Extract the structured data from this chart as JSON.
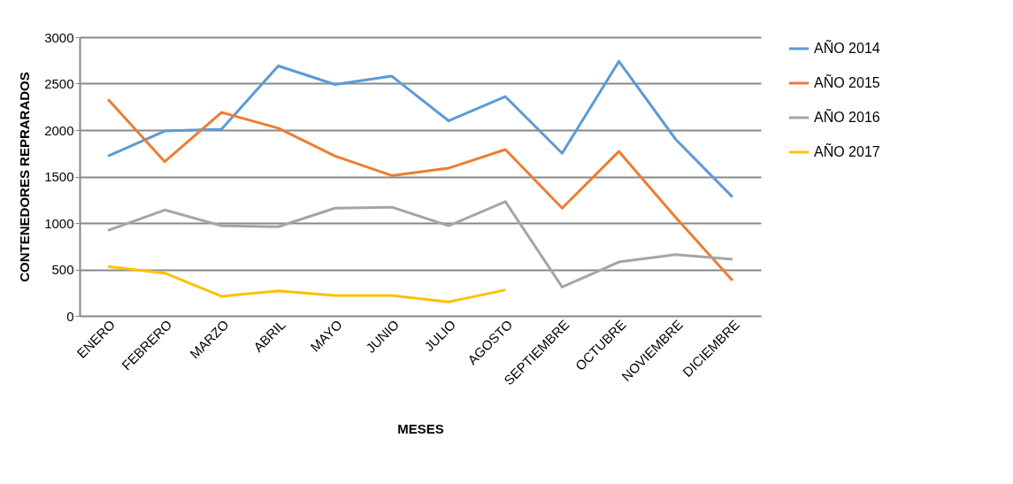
{
  "chart_data": {
    "type": "line",
    "xlabel": "MESES",
    "ylabel": "CONTENEDORES   REPRARADOS",
    "categories": [
      "ENERO",
      "FEBRERO",
      "MARZO",
      "ABRIL",
      "MAYO",
      "JUNIO",
      "JULIO",
      "AGOSTO",
      "SEPTIEMBRE",
      "OCTUBRE",
      "NOVIEMBRE",
      "DICIEMBRE"
    ],
    "series": [
      {
        "name": "AÑO  2014",
        "color": "#5b9bd5",
        "values": [
          1720,
          1990,
          2010,
          2690,
          2490,
          2580,
          2100,
          2360,
          1750,
          2740,
          1900,
          1280
        ]
      },
      {
        "name": "AÑO  2015",
        "color": "#ed7d31",
        "values": [
          2330,
          1660,
          2190,
          2020,
          1720,
          1510,
          1590,
          1790,
          1160,
          1770,
          1060,
          380
        ]
      },
      {
        "name": "AÑO  2016",
        "color": "#a5a5a5",
        "values": [
          920,
          1140,
          970,
          960,
          1160,
          1170,
          970,
          1230,
          310,
          580,
          660,
          610
        ]
      },
      {
        "name": "AÑO  2017",
        "color": "#ffc000",
        "values": [
          530,
          460,
          210,
          270,
          220,
          220,
          150,
          280,
          null,
          null,
          null,
          null
        ]
      }
    ],
    "ylim": [
      0,
      3000
    ],
    "yticks": [
      0,
      500,
      1000,
      1500,
      2000,
      2500,
      3000
    ],
    "grid": "y",
    "legend": "right",
    "marker": "none",
    "line_style": "solid"
  }
}
